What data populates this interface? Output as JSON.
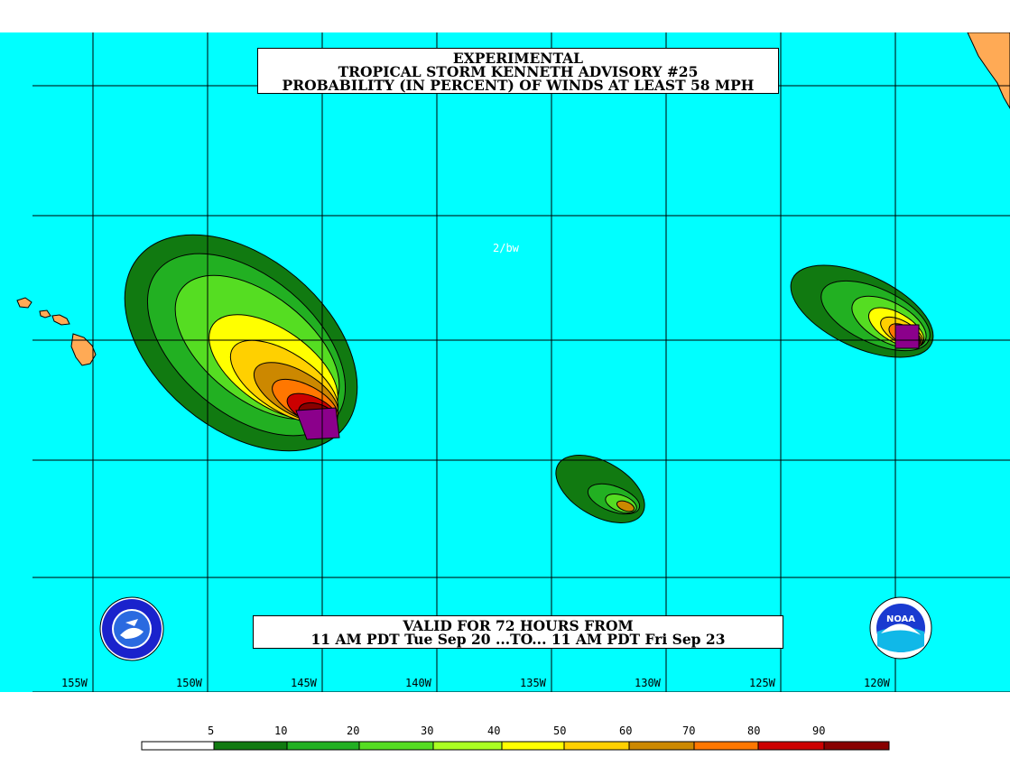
{
  "title": {
    "line1": "EXPERIMENTAL",
    "line2": "TROPICAL STORM KENNETH ADVISORY #25",
    "line3": "PROBABILITY (IN PERCENT) OF WINDS AT LEAST 58 MPH"
  },
  "valid": {
    "line1": "VALID FOR 72 HOURS FROM",
    "line2": "11 AM PDT Tue Sep 20 ...TO... 11 AM PDT Fri Sep 23"
  },
  "initials": "2/bw",
  "longitudes": [
    "155W",
    "150W",
    "145W",
    "140W",
    "135W",
    "130W",
    "125W",
    "120W"
  ],
  "logos": {
    "nws": "nws-logo",
    "noaa_text": "NOAA"
  },
  "colors": {
    "ocean": "#00ffff",
    "land": "#ffaa55",
    "legend": [
      "#ffffff",
      "#117a11",
      "#22b022",
      "#55dd22",
      "#aaff22",
      "#ffff00",
      "#ffd000",
      "#cc8800",
      "#ff7700",
      "#cc0000",
      "#880000",
      "#8b008b"
    ]
  },
  "legend": {
    "labels": [
      "5",
      "10",
      "20",
      "30",
      "40",
      "50",
      "60",
      "70",
      "80",
      "90"
    ]
  }
}
